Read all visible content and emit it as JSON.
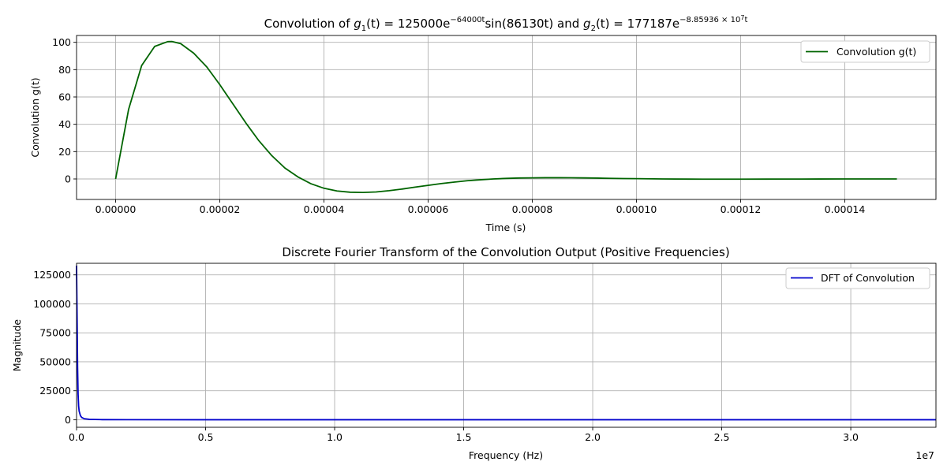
{
  "chart_data": [
    {
      "type": "line",
      "title": "Convolution of g₁(t) = 125000e^(−64000t) sin(86130t) and g₂(t) = 177187e^(−8.85936×10^7 t)",
      "title_parts": {
        "prefix": "Convolution of ",
        "g1_name": "g",
        "g1_sub": "1",
        "g1_expr": "(t) = 125000e",
        "g1_exp": "−64000t",
        "g1_tail": "sin(86130t) and ",
        "g2_name": "g",
        "g2_sub": "2",
        "g2_expr": "(t) = 177187e",
        "g2_exp": "−8.85936 × 10",
        "g2_exp_pow": "7",
        "g2_exp_tail": "t"
      },
      "xlabel": "Time (s)",
      "ylabel": "Convolution g(t)",
      "xlim": [
        -7.5e-06,
        0.0001575
      ],
      "ylim": [
        -15,
        105
      ],
      "xticks": [
        0,
        2e-05,
        4e-05,
        6e-05,
        8e-05,
        0.0001,
        0.00012,
        0.00014
      ],
      "xtick_labels": [
        "0.00000",
        "0.00002",
        "0.00004",
        "0.00006",
        "0.00008",
        "0.00010",
        "0.00012",
        "0.00014"
      ],
      "yticks": [
        0,
        20,
        40,
        60,
        80,
        100
      ],
      "ytick_labels": [
        "0",
        "20",
        "40",
        "60",
        "80",
        "100"
      ],
      "grid": true,
      "legend": "top-right",
      "series": [
        {
          "name": "Convolution g(t)",
          "color": "#006400",
          "x": [
            0,
            2.5e-06,
            5e-06,
            7.5e-06,
            1e-05,
            1.08e-05,
            1.25e-05,
            1.5e-05,
            1.75e-05,
            2e-05,
            2.25e-05,
            2.5e-05,
            2.75e-05,
            3e-05,
            3.25e-05,
            3.5e-05,
            3.75e-05,
            4e-05,
            4.25e-05,
            4.5e-05,
            4.75e-05,
            5e-05,
            5.25e-05,
            5.5e-05,
            5.75e-05,
            6e-05,
            6.25e-05,
            6.5e-05,
            6.75e-05,
            7e-05,
            7.25e-05,
            7.5e-05,
            7.75e-05,
            8e-05,
            8.25e-05,
            8.5e-05,
            8.75e-05,
            9e-05,
            9.25e-05,
            9.5e-05,
            9.75e-05,
            0.0001,
            0.000105,
            0.00011,
            0.000115,
            0.00012,
            0.000125,
            0.00013,
            0.000135,
            0.00014,
            0.000145,
            0.00015
          ],
          "y": [
            0,
            51,
            83,
            97,
            100.5,
            100.6,
            99,
            92,
            82,
            69,
            55,
            41,
            28,
            17,
            8,
            1.5,
            -3.5,
            -6.8,
            -8.8,
            -9.7,
            -9.9,
            -9.5,
            -8.6,
            -7.4,
            -6.0,
            -4.7,
            -3.4,
            -2.3,
            -1.3,
            -0.6,
            0.0,
            0.4,
            0.7,
            0.8,
            0.9,
            0.9,
            0.85,
            0.75,
            0.6,
            0.45,
            0.3,
            0.2,
            0.0,
            -0.1,
            -0.15,
            -0.15,
            -0.12,
            -0.08,
            -0.04,
            0.0,
            0.01,
            0.0
          ]
        }
      ]
    },
    {
      "type": "line",
      "title": "Discrete Fourier Transform of the Convolution Output (Positive Frequencies)",
      "xlabel": "Frequency (Hz)",
      "ylabel": "Magnitude",
      "x_offset_label": "1e7",
      "xlim": [
        0,
        33300000
      ],
      "ylim": [
        -6500,
        135000
      ],
      "xticks": [
        0,
        5000000,
        10000000,
        15000000,
        20000000,
        25000000,
        30000000
      ],
      "xtick_labels": [
        "0.0",
        "0.5",
        "1.0",
        "1.5",
        "2.0",
        "2.5",
        "3.0"
      ],
      "yticks": [
        0,
        25000,
        50000,
        75000,
        100000,
        125000
      ],
      "ytick_labels": [
        "0",
        "25000",
        "50000",
        "75000",
        "100000",
        "125000"
      ],
      "grid": true,
      "legend": "top-right",
      "series": [
        {
          "name": "DFT of Convolution",
          "color": "#0000cc",
          "x": [
            0,
            20000,
            40000,
            60000,
            80000,
            100000,
            150000,
            200000,
            300000,
            500000,
            1000000,
            2000000,
            5000000,
            10000000,
            20000000,
            33300000
          ],
          "y": [
            133000,
            90000,
            45000,
            22000,
            12000,
            7500,
            3500,
            2000,
            900,
            350,
            100,
            30,
            5,
            1,
            0,
            0
          ]
        }
      ]
    }
  ]
}
